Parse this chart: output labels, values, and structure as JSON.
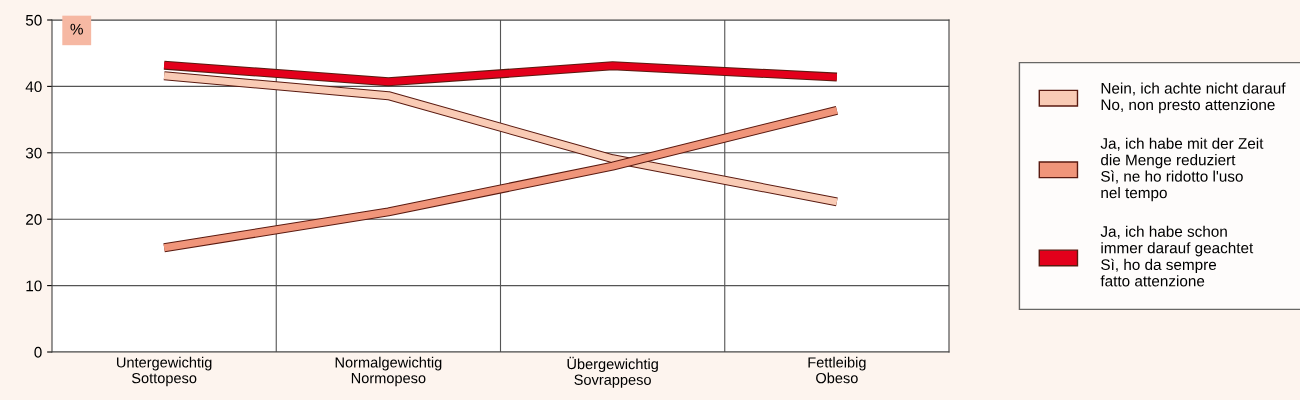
{
  "chart_data": {
    "type": "line",
    "ylabel": "%",
    "categories": [
      "Untergewichtig\nSottopeso",
      "Normalgewichtig\nNormopeso",
      "Übergewichtig\nSovrappeso",
      "Fettleibig\nObeso"
    ],
    "series": [
      {
        "name": "Nein, ich achte nicht darauf\nNo, non presto attenzione",
        "color": "#f9cbb5",
        "values": [
          41.6,
          38.6,
          29.1,
          22.6
        ]
      },
      {
        "name": "Ja, ich habe mit der Zeit\ndie Menge reduziert\nSì, ne ho ridotto l'uso\nnel tempo",
        "color": "#f0957a",
        "values": [
          15.7,
          21.1,
          28.0,
          36.4
        ]
      },
      {
        "name": "Ja, ich habe schon\nimmer darauf geachtet\nSì, ho da sempre\nfatto attenzione",
        "color": "#e3001b",
        "values": [
          43.2,
          40.7,
          43.1,
          41.4
        ]
      }
    ],
    "ylim": [
      0,
      50
    ],
    "yticks": [
      0,
      10,
      20,
      30,
      40,
      50
    ],
    "grid": true,
    "legend": "right",
    "marker": "none",
    "line_style": "solid"
  }
}
